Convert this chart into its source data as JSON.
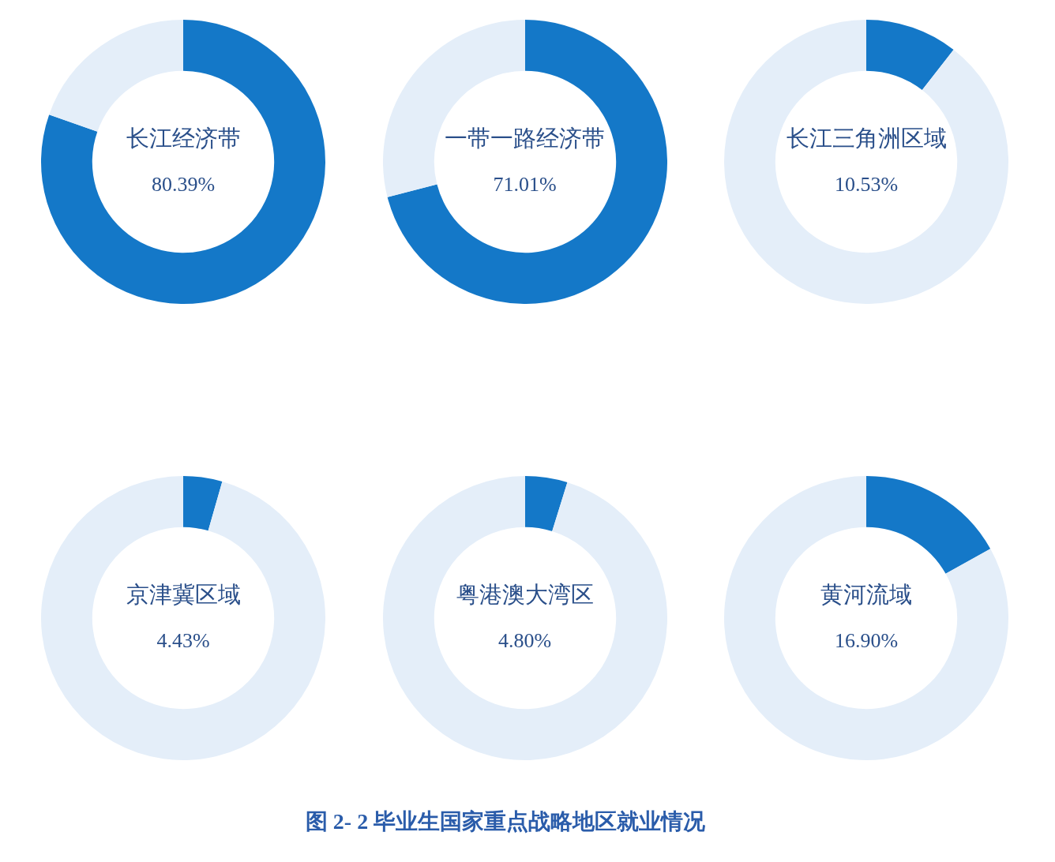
{
  "chart_data": [
    {
      "type": "donut",
      "categories": [
        "长江经济带",
        null
      ],
      "values": [
        80.39,
        19.61
      ],
      "colors": [
        "#1478c8",
        "#e4eef9"
      ],
      "value_labels": [
        "80.39%",
        null
      ]
    },
    {
      "type": "donut",
      "categories": [
        "一带一路经济带",
        null
      ],
      "values": [
        71.01,
        28.99
      ],
      "colors": [
        "#1478c8",
        "#e4eef9"
      ],
      "value_labels": [
        "71.01%",
        null
      ]
    },
    {
      "type": "donut",
      "categories": [
        "长江三角洲区域",
        null
      ],
      "values": [
        10.53,
        89.47
      ],
      "colors": [
        "#1478c8",
        "#e4eef9"
      ],
      "value_labels": [
        "10.53%",
        null
      ]
    },
    {
      "type": "donut",
      "categories": [
        "京津冀区域",
        null
      ],
      "values": [
        4.43,
        95.57
      ],
      "colors": [
        "#1478c8",
        "#e4eef9"
      ],
      "value_labels": [
        "4.43%",
        null
      ]
    },
    {
      "type": "donut",
      "categories": [
        "粤港澳大湾区",
        null
      ],
      "values": [
        4.8,
        95.2
      ],
      "colors": [
        "#1478c8",
        "#e4eef9"
      ],
      "value_labels": [
        "4.80%",
        null
      ]
    },
    {
      "type": "donut",
      "categories": [
        "黄河流域",
        null
      ],
      "values": [
        16.9,
        83.1
      ],
      "colors": [
        "#1478c8",
        "#e4eef9"
      ],
      "value_labels": [
        "16.90%",
        null
      ]
    },
    {
      "type": "other",
      "title": "图 2- 2 毕业生国家重点战略地区就业情况"
    }
  ]
}
